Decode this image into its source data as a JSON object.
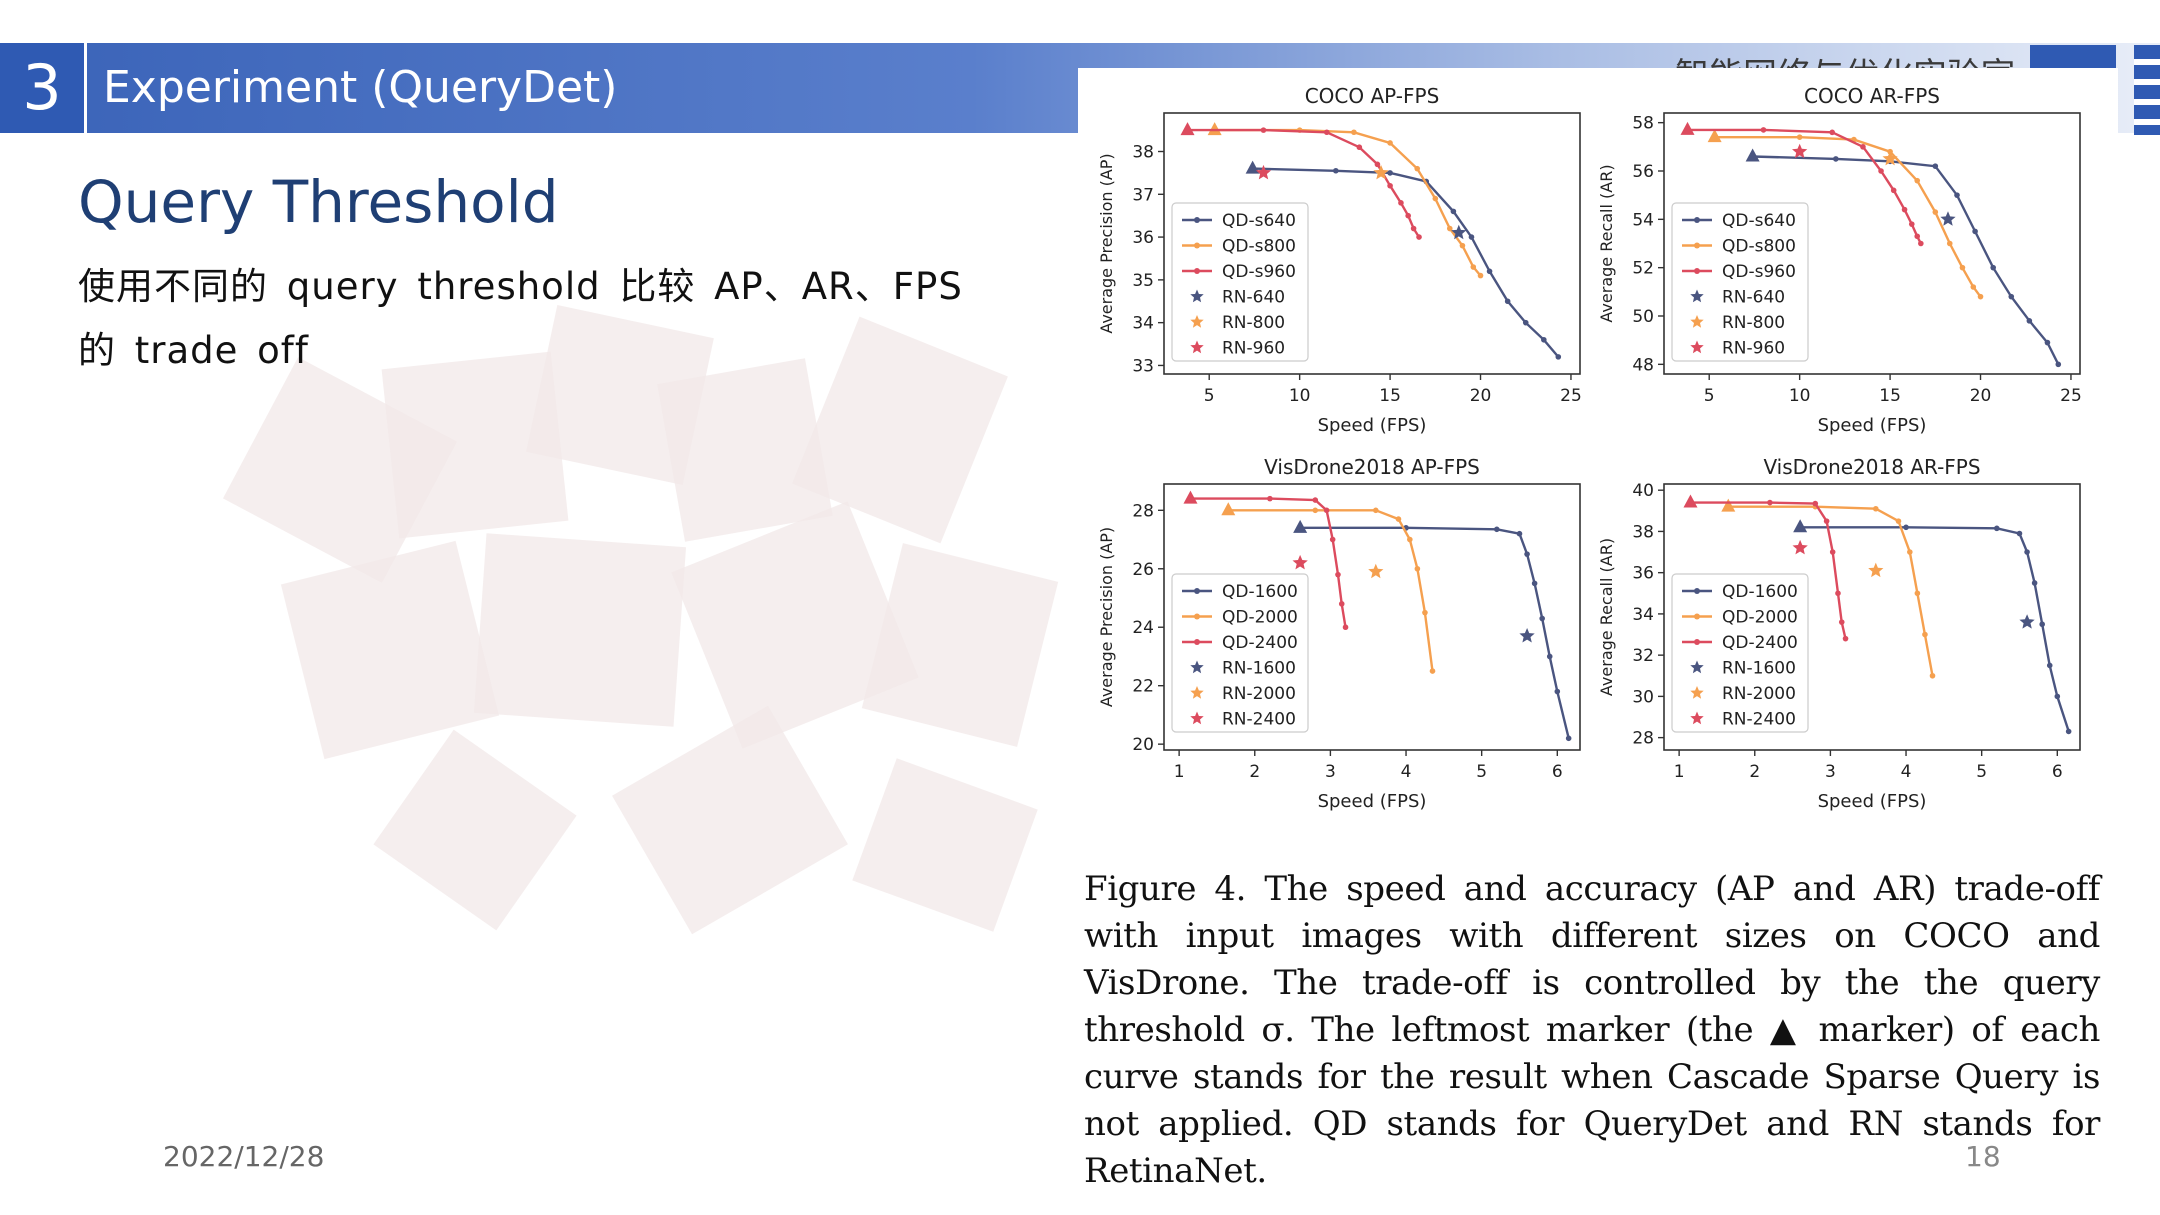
{
  "header": {
    "section_number": "3",
    "title": "Experiment (QueryDet)",
    "logo_text": "智能网络与优化实验室"
  },
  "slide": {
    "title": "Query Threshold",
    "body": "使用不同的 query threshold 比较 AP、AR、FPS 的 trade off",
    "date": "2022/12/28",
    "page_number": "18"
  },
  "colors": {
    "header_blue": "#2f5ab3",
    "series_navy": "#4a5580",
    "series_orange": "#f5a04f",
    "series_red": "#dc4b5e"
  },
  "figure": {
    "caption": "Figure 4. The speed and accuracy (AP and AR) trade-off with input images with different sizes on COCO and VisDrone. The trade-off is controlled by the the query threshold σ. The leftmost marker (the ▲ marker) of each curve stands for the result when Cascade Sparse Query is not applied. QD stands for QueryDet and RN stands for RetinaNet."
  },
  "chart_data": [
    {
      "type": "line",
      "title": "COCO AP-FPS",
      "xlabel": "Speed (FPS)",
      "ylabel": "Average Precision (AP)",
      "xlim": [
        2.5,
        25.5
      ],
      "ylim": [
        32.8,
        38.9
      ],
      "xticks": [
        5,
        10,
        15,
        20,
        25
      ],
      "yticks": [
        33,
        34,
        35,
        36,
        37,
        38
      ],
      "legend": "middle-left",
      "series": [
        {
          "name": "QD-s640",
          "color": "#4a5580",
          "marker": "dot",
          "x": [
            7.4,
            12,
            15,
            17,
            18.5,
            19.5,
            20.5,
            21.5,
            22.5,
            23.5,
            24.3
          ],
          "y": [
            37.6,
            37.55,
            37.5,
            37.3,
            36.6,
            36.0,
            35.2,
            34.5,
            34.0,
            33.6,
            33.2
          ]
        },
        {
          "name": "QD-s800",
          "color": "#f5a04f",
          "marker": "dot",
          "x": [
            5.3,
            10,
            13,
            15,
            16.5,
            17.5,
            18.3,
            19,
            19.6,
            20
          ],
          "y": [
            38.5,
            38.5,
            38.45,
            38.2,
            37.6,
            36.9,
            36.2,
            35.8,
            35.3,
            35.1
          ]
        },
        {
          "name": "QD-s960",
          "color": "#dc4b5e",
          "marker": "dot",
          "x": [
            3.8,
            8,
            11.5,
            13.3,
            14.3,
            15,
            15.6,
            16,
            16.3,
            16.6
          ],
          "y": [
            38.5,
            38.5,
            38.45,
            38.1,
            37.7,
            37.2,
            36.8,
            36.5,
            36.2,
            36.0
          ]
        },
        {
          "name": "RN-640",
          "color": "#4a5580",
          "marker": "star",
          "x": [
            18.8
          ],
          "y": [
            36.1
          ]
        },
        {
          "name": "RN-800",
          "color": "#f5a04f",
          "marker": "star",
          "x": [
            14.5
          ],
          "y": [
            37.5
          ]
        },
        {
          "name": "RN-960",
          "color": "#dc4b5e",
          "marker": "star",
          "x": [
            8.0
          ],
          "y": [
            37.5
          ]
        }
      ]
    },
    {
      "type": "line",
      "title": "COCO AR-FPS",
      "xlabel": "Speed (FPS)",
      "ylabel": "Average Recall (AR)",
      "xlim": [
        2.5,
        25.5
      ],
      "ylim": [
        47.6,
        58.4
      ],
      "xticks": [
        5,
        10,
        15,
        20,
        25
      ],
      "yticks": [
        48,
        50,
        52,
        54,
        56,
        58
      ],
      "legend": "middle-left",
      "series": [
        {
          "name": "QD-s640",
          "color": "#4a5580",
          "marker": "dot",
          "x": [
            7.4,
            12,
            15,
            17.5,
            18.7,
            19.7,
            20.7,
            21.7,
            22.7,
            23.7,
            24.3
          ],
          "y": [
            56.6,
            56.5,
            56.4,
            56.2,
            55.0,
            53.5,
            52.0,
            50.8,
            49.8,
            48.9,
            48.0
          ]
        },
        {
          "name": "QD-s800",
          "color": "#f5a04f",
          "marker": "dot",
          "x": [
            5.3,
            10,
            13,
            15,
            16.5,
            17.5,
            18.3,
            19,
            19.6,
            20
          ],
          "y": [
            57.4,
            57.4,
            57.3,
            56.8,
            55.6,
            54.3,
            53.0,
            52.0,
            51.2,
            50.8
          ]
        },
        {
          "name": "QD-s960",
          "color": "#dc4b5e",
          "marker": "dot",
          "x": [
            3.8,
            8,
            11.8,
            13.5,
            14.5,
            15.2,
            15.8,
            16.2,
            16.5,
            16.7
          ],
          "y": [
            57.7,
            57.7,
            57.6,
            57.0,
            56.0,
            55.2,
            54.4,
            53.8,
            53.3,
            53.0
          ]
        },
        {
          "name": "RN-640",
          "color": "#4a5580",
          "marker": "star",
          "x": [
            18.2
          ],
          "y": [
            54.0
          ]
        },
        {
          "name": "RN-800",
          "color": "#f5a04f",
          "marker": "star",
          "x": [
            15.0
          ],
          "y": [
            56.5
          ]
        },
        {
          "name": "RN-960",
          "color": "#dc4b5e",
          "marker": "star",
          "x": [
            10.0
          ],
          "y": [
            56.8
          ]
        }
      ]
    },
    {
      "type": "line",
      "title": "VisDrone2018 AP-FPS",
      "xlabel": "Speed (FPS)",
      "ylabel": "Average Precision (AP)",
      "xlim": [
        0.8,
        6.3
      ],
      "ylim": [
        19.8,
        28.9
      ],
      "xticks": [
        1,
        2,
        3,
        4,
        5,
        6
      ],
      "yticks": [
        20,
        22,
        24,
        26,
        28
      ],
      "legend": "middle-left",
      "series": [
        {
          "name": "QD-1600",
          "color": "#4a5580",
          "marker": "dot",
          "x": [
            2.6,
            4,
            5.2,
            5.5,
            5.6,
            5.7,
            5.8,
            5.9,
            6.0,
            6.15
          ],
          "y": [
            27.4,
            27.4,
            27.35,
            27.2,
            26.5,
            25.5,
            24.3,
            23.0,
            21.8,
            20.2
          ]
        },
        {
          "name": "QD-2000",
          "color": "#f5a04f",
          "marker": "dot",
          "x": [
            1.65,
            2.8,
            3.6,
            3.9,
            4.05,
            4.15,
            4.25,
            4.35
          ],
          "y": [
            28.0,
            28.0,
            28.0,
            27.7,
            27.0,
            26.0,
            24.5,
            22.5
          ]
        },
        {
          "name": "QD-2400",
          "color": "#dc4b5e",
          "marker": "dot",
          "x": [
            1.15,
            2.2,
            2.8,
            2.95,
            3.03,
            3.1,
            3.15,
            3.2
          ],
          "y": [
            28.4,
            28.4,
            28.35,
            28.0,
            27.0,
            25.8,
            24.8,
            24.0
          ]
        },
        {
          "name": "RN-1600",
          "color": "#4a5580",
          "marker": "star",
          "x": [
            5.6
          ],
          "y": [
            23.7
          ]
        },
        {
          "name": "RN-2000",
          "color": "#f5a04f",
          "marker": "star",
          "x": [
            3.6
          ],
          "y": [
            25.9
          ]
        },
        {
          "name": "RN-2400",
          "color": "#dc4b5e",
          "marker": "star",
          "x": [
            2.6
          ],
          "y": [
            26.2
          ]
        }
      ]
    },
    {
      "type": "line",
      "title": "VisDrone2018 AR-FPS",
      "xlabel": "Speed (FPS)",
      "ylabel": "Average Recall (AR)",
      "xlim": [
        0.8,
        6.3
      ],
      "ylim": [
        27.4,
        40.3
      ],
      "xticks": [
        1,
        2,
        3,
        4,
        5,
        6
      ],
      "yticks": [
        28,
        30,
        32,
        34,
        36,
        38,
        40
      ],
      "legend": "middle-left",
      "series": [
        {
          "name": "QD-1600",
          "color": "#4a5580",
          "marker": "dot",
          "x": [
            2.6,
            4,
            5.2,
            5.5,
            5.6,
            5.7,
            5.8,
            5.9,
            6.0,
            6.15
          ],
          "y": [
            38.2,
            38.2,
            38.15,
            37.9,
            37.0,
            35.5,
            33.5,
            31.5,
            30.0,
            28.3
          ]
        },
        {
          "name": "QD-2000",
          "color": "#f5a04f",
          "marker": "dot",
          "x": [
            1.65,
            2.8,
            3.6,
            3.9,
            4.05,
            4.15,
            4.25,
            4.35
          ],
          "y": [
            39.2,
            39.2,
            39.1,
            38.5,
            37.0,
            35.0,
            33.0,
            31.0
          ]
        },
        {
          "name": "QD-2400",
          "color": "#dc4b5e",
          "marker": "dot",
          "x": [
            1.15,
            2.2,
            2.8,
            2.95,
            3.03,
            3.1,
            3.15,
            3.2
          ],
          "y": [
            39.4,
            39.4,
            39.35,
            38.5,
            37.0,
            35.0,
            33.6,
            32.8
          ]
        },
        {
          "name": "RN-1600",
          "color": "#4a5580",
          "marker": "star",
          "x": [
            5.6
          ],
          "y": [
            33.6
          ]
        },
        {
          "name": "RN-2000",
          "color": "#f5a04f",
          "marker": "star",
          "x": [
            3.6
          ],
          "y": [
            36.1
          ]
        },
        {
          "name": "RN-2400",
          "color": "#dc4b5e",
          "marker": "star",
          "x": [
            2.6
          ],
          "y": [
            37.2
          ]
        }
      ]
    }
  ]
}
